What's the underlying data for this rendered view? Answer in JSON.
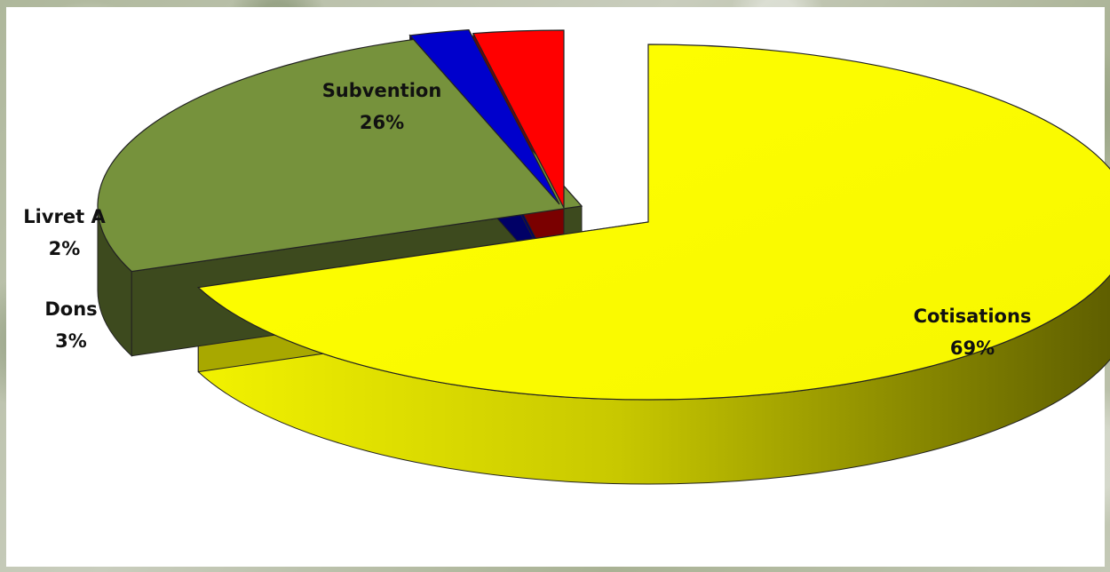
{
  "chart_data": {
    "type": "pie",
    "style": "3d-exploded",
    "categories": [
      "Cotisations",
      "Subvention",
      "Livret A",
      "Dons"
    ],
    "values": [
      69,
      26,
      2,
      3
    ],
    "value_labels": [
      "69%",
      "26%",
      "2%",
      "3%"
    ],
    "colors": [
      "#ffff00",
      "#76923c",
      "#0000cc",
      "#ff0000"
    ],
    "side_colors": [
      "#a8a800",
      "#3d4a1e",
      "#000066",
      "#7a0000"
    ],
    "legend": "none",
    "labels": {
      "cotisations": {
        "name": "Cotisations",
        "value": "69%"
      },
      "subvention": {
        "name": "Subvention",
        "value": "26%"
      },
      "livret": {
        "name": "Livret A",
        "value": "2%"
      },
      "dons": {
        "name": "Dons",
        "value": "3%"
      }
    }
  }
}
